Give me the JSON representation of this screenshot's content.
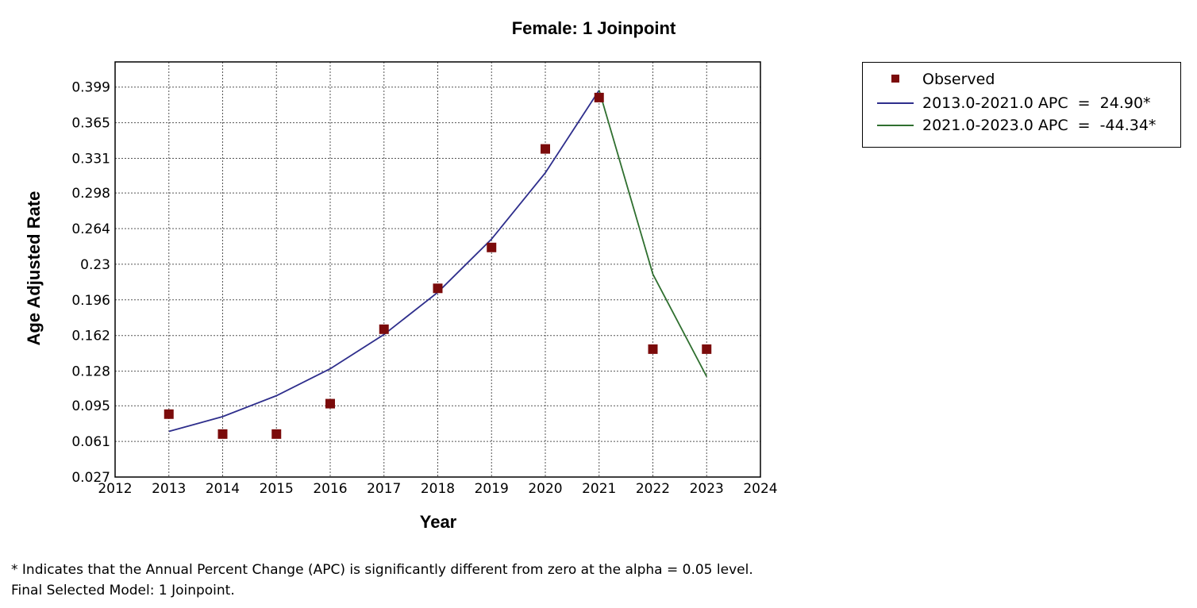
{
  "chart_data": {
    "type": "scatter",
    "title": "Female: 1 Joinpoint",
    "xlabel": "Year",
    "ylabel": "Age Adjusted Rate",
    "xlim": [
      2012,
      2024
    ],
    "ylim": [
      0.027,
      0.423
    ],
    "x_ticks": [
      2012,
      2013,
      2014,
      2015,
      2016,
      2017,
      2018,
      2019,
      2020,
      2021,
      2022,
      2023,
      2024
    ],
    "y_ticks": [
      0.027,
      0.061,
      0.095,
      0.128,
      0.162,
      0.196,
      0.23,
      0.264,
      0.298,
      0.331,
      0.365,
      0.399
    ],
    "y_tick_labels": [
      "0.027",
      "0.061",
      "0.095",
      "0.128",
      "0.162",
      "0.196",
      "0.23",
      "0.264",
      "0.298",
      "0.331",
      "0.365",
      "0.399"
    ],
    "grid": true,
    "legend_position": "right",
    "series": [
      {
        "name": "Observed",
        "kind": "marker",
        "color": "#7b0b0b",
        "x": [
          2013,
          2014,
          2015,
          2016,
          2017,
          2018,
          2019,
          2020,
          2021,
          2022,
          2023
        ],
        "y": [
          0.087,
          0.068,
          0.068,
          0.097,
          0.168,
          0.207,
          0.246,
          0.34,
          0.389,
          0.149,
          0.149
        ]
      },
      {
        "name": "2013.0-2021.0 APC  =  24.90*",
        "kind": "line",
        "color": "#2e2e8c",
        "x": [
          2013,
          2014,
          2015,
          2016,
          2017,
          2018,
          2019,
          2020,
          2021
        ],
        "y": [
          0.0705,
          0.0846,
          0.1046,
          0.1303,
          0.163,
          0.2032,
          0.254,
          0.3172,
          0.396
        ]
      },
      {
        "name": "2021.0-2023.0 APC  =  -44.34*",
        "kind": "line",
        "color": "#2f6f2f",
        "x": [
          2021,
          2022,
          2023
        ],
        "y": [
          0.396,
          0.2205,
          0.1228
        ]
      }
    ]
  },
  "footnotes": [
    "* Indicates that the Annual Percent Change (APC) is significantly different from zero at the alpha = 0.05 level.",
    "Final Selected Model: 1 Joinpoint."
  ]
}
